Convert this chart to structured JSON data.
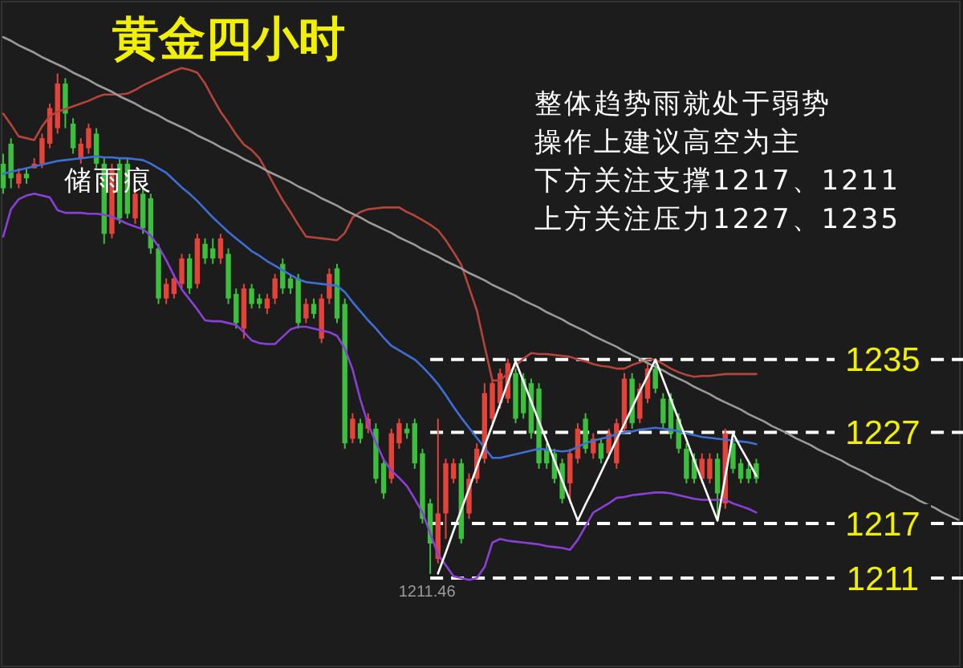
{
  "chart_data": {
    "type": "candlestick",
    "title": "黄金四小时",
    "categories": [
      null,
      null,
      null,
      null,
      null,
      null,
      null,
      null,
      null,
      null,
      null,
      null,
      null,
      null,
      null,
      null,
      null,
      null,
      null,
      null,
      null,
      null,
      null,
      null,
      null,
      null,
      null,
      null,
      null,
      null,
      null,
      null,
      null,
      null,
      null,
      null,
      null,
      null,
      null,
      null,
      null,
      null,
      null,
      null,
      null,
      null,
      null,
      null,
      null,
      null,
      null,
      null,
      null,
      null,
      null,
      null,
      null,
      null,
      null,
      null,
      null,
      null,
      null,
      null,
      null,
      null,
      null,
      null,
      null,
      null,
      null,
      null,
      null,
      null,
      null,
      null,
      null,
      null,
      null,
      null,
      null,
      null,
      null,
      null,
      null,
      null,
      null,
      null,
      null,
      null,
      null,
      null,
      null,
      null,
      null,
      null,
      null,
      null,
      null,
      null,
      null,
      null,
      null,
      null,
      null,
      null,
      null,
      null,
      null,
      null,
      null,
      null,
      null,
      null,
      null,
      null,
      null,
      null,
      null,
      null,
      null,
      null,
      null,
      null
    ],
    "ohlc": [
      [
        1256.5,
        1257.6,
        1253.2,
        1253.8
      ],
      [
        1258.7,
        1259.3,
        1253.8,
        1254.9
      ],
      [
        1254.3,
        1256.0,
        1253.8,
        1255.4
      ],
      [
        1255.4,
        1256.0,
        1254.3,
        1254.9
      ],
      [
        1256.0,
        1257.1,
        1256.0,
        1256.5
      ],
      [
        1256.5,
        1259.8,
        1256.0,
        1259.3
      ],
      [
        1258.7,
        1263.1,
        1258.2,
        1262.6
      ],
      [
        1260.4,
        1266.4,
        1259.8,
        1265.3
      ],
      [
        1265.3,
        1265.9,
        1260.4,
        1262.0
      ],
      [
        1260.9,
        1261.5,
        1257.6,
        1258.2
      ],
      [
        1257.1,
        1259.3,
        1256.5,
        1258.7
      ],
      [
        1258.2,
        1260.9,
        1257.6,
        1260.4
      ],
      [
        1259.8,
        1260.4,
        1256.0,
        1256.5
      ],
      [
        1256.5,
        1257.1,
        1247.7,
        1248.8
      ],
      [
        1248.8,
        1256.5,
        1248.3,
        1256.0
      ],
      [
        1256.5,
        1257.1,
        1249.9,
        1250.5
      ],
      [
        1256.5,
        1257.1,
        1250.5,
        1251.0
      ],
      [
        1250.5,
        1253.8,
        1249.9,
        1253.2
      ],
      [
        1253.2,
        1253.8,
        1248.8,
        1249.4
      ],
      [
        1252.7,
        1253.2,
        1246.6,
        1247.2
      ],
      [
        1247.2,
        1247.7,
        1241.1,
        1241.7
      ],
      [
        1241.7,
        1243.9,
        1241.1,
        1243.3
      ],
      [
        1242.2,
        1244.4,
        1241.7,
        1243.9
      ],
      [
        1243.3,
        1246.6,
        1242.8,
        1246.1
      ],
      [
        1246.1,
        1246.6,
        1242.2,
        1242.8
      ],
      [
        1243.3,
        1248.8,
        1242.8,
        1248.3
      ],
      [
        1247.7,
        1248.3,
        1245.5,
        1246.1
      ],
      [
        1247.2,
        1248.3,
        1245.5,
        1246.1
      ],
      [
        1246.1,
        1248.8,
        1245.5,
        1248.3
      ],
      [
        1246.6,
        1247.2,
        1241.1,
        1241.7
      ],
      [
        1242.2,
        1242.8,
        1238.4,
        1239.0
      ],
      [
        1238.4,
        1243.3,
        1237.3,
        1242.8
      ],
      [
        1242.8,
        1243.3,
        1240.6,
        1241.1
      ],
      [
        1241.7,
        1242.2,
        1240.6,
        1241.1
      ],
      [
        1240.6,
        1242.2,
        1240.0,
        1241.7
      ],
      [
        1241.7,
        1244.4,
        1241.1,
        1243.9
      ],
      [
        1245.5,
        1246.1,
        1242.2,
        1242.8
      ],
      [
        1243.9,
        1244.4,
        1242.2,
        1242.8
      ],
      [
        1243.9,
        1244.4,
        1238.4,
        1239.0
      ],
      [
        1239.5,
        1241.7,
        1239.0,
        1241.1
      ],
      [
        1241.1,
        1241.7,
        1239.5,
        1240.0
      ],
      [
        1237.3,
        1242.2,
        1236.8,
        1241.7
      ],
      [
        1241.7,
        1245.0,
        1241.1,
        1244.4
      ],
      [
        1245.0,
        1245.5,
        1239.0,
        1239.5
      ],
      [
        1241.1,
        1241.7,
        1225.2,
        1225.8
      ],
      [
        1226.3,
        1229.1,
        1225.8,
        1228.5
      ],
      [
        1228.0,
        1228.5,
        1225.8,
        1226.3
      ],
      [
        1227.4,
        1229.1,
        1226.9,
        1228.5
      ],
      [
        1227.4,
        1228.0,
        1221.4,
        1221.9
      ],
      [
        1223.6,
        1224.1,
        1219.7,
        1220.3
      ],
      [
        1221.9,
        1227.4,
        1221.4,
        1226.9
      ],
      [
        1225.8,
        1228.5,
        1225.2,
        1228.0
      ],
      [
        1227.4,
        1228.0,
        1226.3,
        1226.9
      ],
      [
        1228.0,
        1228.5,
        1223.0,
        1223.6
      ],
      [
        1224.7,
        1225.2,
        1217.0,
        1217.5
      ],
      [
        1219.2,
        1219.7,
        1211.46,
        1214.8
      ],
      [
        1213.1,
        1228.5,
        1212.6,
        1218.1
      ],
      [
        1218.1,
        1224.1,
        1215.3,
        1223.6
      ],
      [
        1221.9,
        1224.1,
        1221.4,
        1223.6
      ],
      [
        1223.6,
        1224.1,
        1214.8,
        1215.3
      ],
      [
        1218.1,
        1222.5,
        1217.5,
        1221.9
      ],
      [
        1221.9,
        1225.8,
        1221.4,
        1225.2
      ],
      [
        1224.1,
        1232.4,
        1223.6,
        1231.3
      ],
      [
        1228.5,
        1232.9,
        1228.0,
        1232.4
      ],
      [
        1230.2,
        1234.0,
        1229.6,
        1233.5
      ],
      [
        1230.7,
        1235.1,
        1230.2,
        1234.6
      ],
      [
        1233.5,
        1234.0,
        1228.0,
        1228.5
      ],
      [
        1232.9,
        1233.5,
        1228.5,
        1229.1
      ],
      [
        1232.4,
        1232.9,
        1226.3,
        1226.9
      ],
      [
        1231.8,
        1232.4,
        1223.0,
        1223.6
      ],
      [
        1225.2,
        1225.8,
        1223.0,
        1223.6
      ],
      [
        1224.7,
        1225.2,
        1221.4,
        1221.9
      ],
      [
        1223.6,
        1224.1,
        1219.2,
        1219.7
      ],
      [
        1221.4,
        1225.2,
        1219.2,
        1224.7
      ],
      [
        1224.1,
        1228.0,
        1223.6,
        1227.4
      ],
      [
        1228.5,
        1229.1,
        1224.7,
        1225.2
      ],
      [
        1224.7,
        1226.9,
        1224.1,
        1226.3
      ],
      [
        1225.8,
        1226.3,
        1223.6,
        1224.1
      ],
      [
        1224.7,
        1227.4,
        1224.1,
        1226.9
      ],
      [
        1223.6,
        1228.5,
        1223.0,
        1228.0
      ],
      [
        1227.4,
        1233.5,
        1226.9,
        1232.9
      ],
      [
        1232.9,
        1233.5,
        1227.4,
        1228.0
      ],
      [
        1228.5,
        1232.4,
        1228.0,
        1231.8
      ],
      [
        1230.7,
        1234.6,
        1230.2,
        1234.0
      ],
      [
        1234.0,
        1234.6,
        1231.3,
        1231.8
      ],
      [
        1230.7,
        1231.3,
        1227.4,
        1228.0
      ],
      [
        1230.7,
        1231.3,
        1226.3,
        1226.9
      ],
      [
        1228.5,
        1229.1,
        1224.7,
        1225.2
      ],
      [
        1225.2,
        1225.8,
        1221.4,
        1221.9
      ],
      [
        1224.1,
        1224.7,
        1221.4,
        1221.9
      ],
      [
        1221.9,
        1224.7,
        1221.4,
        1224.1
      ],
      [
        1221.9,
        1224.7,
        1221.4,
        1224.1
      ],
      [
        1224.1,
        1224.7,
        1217.5,
        1220.3
      ],
      [
        1219.2,
        1227.4,
        1218.6,
        1226.9
      ],
      [
        1225.8,
        1226.3,
        1222.5,
        1223.0
      ],
      [
        1223.6,
        1224.1,
        1221.4,
        1221.9
      ],
      [
        1223.0,
        1223.6,
        1221.4,
        1221.9
      ],
      [
        1223.6,
        1224.1,
        1221.4,
        1221.9
      ],
      null,
      null,
      null,
      null,
      null,
      null,
      null,
      null,
      null,
      null,
      null,
      null,
      null,
      null,
      null,
      null,
      null,
      null,
      null,
      null,
      null,
      null,
      null,
      null,
      null,
      null
    ],
    "series": [
      {
        "type": "line",
        "color": "#b5443a",
        "values": [
          1262.0,
          1260.8,
          1259.5,
          1259.3,
          1259.1,
          1260.6,
          1261.7,
          1262.2,
          1262.5,
          1262.8,
          1263.1,
          1263.4,
          1263.8,
          1264.1,
          1264.1,
          1264.1,
          1264.2,
          1264.6,
          1265.1,
          1265.5,
          1265.9,
          1266.3,
          1266.7,
          1267.0,
          1266.8,
          1266.5,
          1265.3,
          1263.7,
          1262.2,
          1261.0,
          1259.7,
          1258.6,
          1258.0,
          1257.1,
          1255.6,
          1254.0,
          1252.5,
          1251.2,
          1249.8,
          1248.5,
          1248.4,
          1248.3,
          1248.2,
          1248.1,
          1248.9,
          1250.6,
          1251.2,
          1251.5,
          1251.6,
          1251.7,
          1251.7,
          1251.7,
          1251.2,
          1250.8,
          1250.3,
          1249.8,
          1249.2,
          1248.1,
          1246.8,
          1245.4,
          1242.9,
          1240.4,
          1236.5,
          1232.7,
          1232.7,
          1233.5,
          1234.3,
          1235.1,
          1235.7,
          1235.6,
          1235.6,
          1235.5,
          1235.4,
          1235.3,
          1235.0,
          1234.8,
          1234.5,
          1234.3,
          1234.2,
          1234.0,
          1234.0,
          1234.4,
          1234.7,
          1235.0,
          1235.0,
          1234.5,
          1234.0,
          1233.6,
          1233.3,
          1233.1,
          1233.2,
          1233.2,
          1233.3,
          1233.4,
          1233.4,
          1233.4,
          1233.4,
          1233.4,
          null,
          null,
          null,
          null,
          null,
          null,
          null,
          null,
          null,
          null,
          null,
          null,
          null,
          null,
          null,
          null,
          null,
          null,
          null,
          null,
          null,
          null,
          null,
          null,
          null,
          null
        ]
      },
      {
        "type": "line",
        "color": "#3d6fd6",
        "values": [
          1255.4,
          1255.6,
          1255.8,
          1256.0,
          1256.2,
          1256.4,
          1256.6,
          1256.8,
          1256.9,
          1257.0,
          1257.1,
          1257.2,
          1257.3,
          1257.2,
          1257.2,
          1257.1,
          1257.1,
          1257.0,
          1256.9,
          1256.5,
          1256.0,
          1255.5,
          1254.7,
          1253.9,
          1253.2,
          1252.4,
          1251.5,
          1250.6,
          1249.8,
          1249.0,
          1248.3,
          1247.6,
          1246.9,
          1246.4,
          1245.8,
          1245.3,
          1244.8,
          1244.3,
          1243.8,
          1243.5,
          1243.4,
          1243.3,
          1243.2,
          1243.1,
          1242.4,
          1241.3,
          1240.3,
          1239.3,
          1238.4,
          1237.4,
          1236.5,
          1236.0,
          1235.5,
          1235.0,
          1234.2,
          1233.3,
          1232.3,
          1231.1,
          1229.8,
          1228.6,
          1227.5,
          1226.4,
          1225.3,
          1224.2,
          1224.2,
          1224.4,
          1224.6,
          1224.8,
          1225.0,
          1225.2,
          1225.1,
          1225.0,
          1224.9,
          1225.0,
          1225.4,
          1225.8,
          1226.1,
          1226.3,
          1226.5,
          1226.8,
          1227.0,
          1227.1,
          1227.3,
          1227.4,
          1227.5,
          1227.4,
          1227.3,
          1227.1,
          1226.9,
          1226.7,
          1226.5,
          1226.4,
          1226.3,
          1226.2,
          1226.1,
          1226.0,
          1225.9,
          1225.7,
          null,
          null,
          null,
          null,
          null,
          null,
          null,
          null,
          null,
          null,
          null,
          null,
          null,
          null,
          null,
          null,
          null,
          null,
          null,
          null,
          null,
          null,
          null,
          null,
          null,
          null
        ]
      },
      {
        "type": "line",
        "color": "#8a3fd6",
        "values": [
          1248.5,
          1251.5,
          1252.6,
          1253.0,
          1253.2,
          1253.0,
          1252.8,
          1251.4,
          1251.1,
          1251.1,
          1251.1,
          1251.0,
          1251.0,
          1250.9,
          1250.7,
          1250.3,
          1249.9,
          1249.6,
          1249.3,
          1248.6,
          1247.4,
          1245.9,
          1244.2,
          1242.7,
          1241.6,
          1240.5,
          1239.3,
          1239.2,
          1239.2,
          1239.0,
          1238.8,
          1238.0,
          1237.1,
          1236.8,
          1236.7,
          1236.7,
          1237.5,
          1238.3,
          1238.6,
          1238.6,
          1238.4,
          1238.2,
          1238.0,
          1237.6,
          1236.2,
          1233.9,
          1230.6,
          1227.9,
          1225.9,
          1224.0,
          1222.8,
          1222.0,
          1221.1,
          1219.7,
          1218.2,
          1215.9,
          1213.6,
          1212.4,
          1211.2,
          1211.0,
          1210.8,
          1211.0,
          1212.2,
          1214.9,
          1215.3,
          1215.1,
          1215.0,
          1214.9,
          1214.8,
          1214.7,
          1214.5,
          1214.4,
          1214.3,
          1214.1,
          1215.2,
          1216.7,
          1218.2,
          1218.7,
          1219.2,
          1219.8,
          1219.9,
          1220.1,
          1220.2,
          1220.3,
          1220.4,
          1220.4,
          1220.3,
          1220.1,
          1219.9,
          1219.7,
          1219.6,
          1219.6,
          1219.6,
          1219.6,
          1219.2,
          1218.9,
          1218.6,
          1218.2,
          null,
          null,
          null,
          null,
          null,
          null,
          null,
          null,
          null,
          null,
          null,
          null,
          null,
          null,
          null,
          null,
          null,
          null,
          null,
          null,
          null,
          null,
          null,
          null,
          null,
          null
        ]
      },
      {
        "type": "line",
        "color": "#9a9a9a",
        "values": [
          1270.4,
          1270.0,
          1269.5,
          1269.1,
          1268.7,
          1268.2,
          1267.8,
          1267.4,
          1267.0,
          1266.5,
          1266.1,
          1265.7,
          1265.2,
          1264.8,
          1264.4,
          1263.9,
          1263.5,
          1263.1,
          1262.6,
          1262.2,
          1261.8,
          1261.3,
          1260.9,
          1260.5,
          1260.1,
          1259.6,
          1259.2,
          1258.8,
          1258.3,
          1257.9,
          1257.5,
          1257.0,
          1256.6,
          1256.2,
          1255.7,
          1255.3,
          1254.9,
          1254.5,
          1254.0,
          1253.6,
          1253.2,
          1252.7,
          1252.3,
          1251.9,
          1251.4,
          1251.0,
          1250.6,
          1250.1,
          1249.7,
          1249.3,
          1248.9,
          1248.4,
          1248.0,
          1247.6,
          1247.1,
          1246.7,
          1246.3,
          1245.8,
          1245.4,
          1245.0,
          1244.5,
          1244.1,
          1243.7,
          1243.2,
          1242.8,
          1242.4,
          1242.0,
          1241.5,
          1241.1,
          1240.7,
          1240.2,
          1239.8,
          1239.4,
          1238.9,
          1238.5,
          1238.1,
          1237.6,
          1237.2,
          1236.8,
          1236.4,
          1235.9,
          1235.5,
          1235.1,
          1234.6,
          1234.2,
          1233.8,
          1233.3,
          1232.9,
          1232.5,
          1232.0,
          1231.6,
          1231.2,
          1230.7,
          1230.3,
          1229.9,
          1229.5,
          1229.0,
          1228.6,
          1228.2,
          1227.7,
          1227.3,
          1226.9,
          1226.4,
          1226.0,
          1225.6,
          1225.1,
          1224.7,
          1224.3,
          1223.9,
          1223.4,
          1223.0,
          1222.6,
          1222.1,
          1221.7,
          1221.3,
          1220.8,
          1220.4,
          1220.0,
          1219.5,
          1219.1,
          1218.7,
          1218.2,
          1217.8,
          1217.4
        ]
      },
      {
        "type": "line",
        "color": "#ffffff",
        "values": [
          null,
          null,
          null,
          null,
          null,
          null,
          null,
          null,
          null,
          null,
          null,
          null,
          null,
          null,
          null,
          null,
          null,
          null,
          null,
          null,
          null,
          null,
          null,
          null,
          null,
          null,
          null,
          null,
          null,
          null,
          null,
          null,
          null,
          null,
          null,
          null,
          null,
          null,
          null,
          null,
          null,
          null,
          null,
          null,
          null,
          null,
          null,
          null,
          null,
          null,
          null,
          null,
          null,
          null,
          null,
          null,
          1211.5,
          1213.8,
          1216.2,
          1218.5,
          1220.8,
          1223.2,
          1225.5,
          1227.8,
          1230.1,
          1232.5,
          1234.8,
          1232.6,
          1230.4,
          1228.2,
          1226.1,
          1223.9,
          1221.7,
          1219.5,
          1217.3,
          1219.1,
          1220.8,
          1222.6,
          1224.4,
          1226.2,
          1227.9,
          1229.7,
          1231.5,
          1233.2,
          1235.0,
          1232.8,
          1230.6,
          1228.4,
          1226.2,
          1223.9,
          1221.7,
          1219.5,
          1217.3,
          1222.1,
          1226.9,
          1225.3,
          1223.8,
          1222.2,
          null,
          null,
          null,
          null,
          null,
          null,
          null,
          null,
          null,
          null,
          null,
          null,
          null,
          null,
          null,
          null,
          null,
          null,
          null,
          null,
          null,
          null,
          null,
          null,
          null,
          null
        ]
      }
    ],
    "ylim": [
      1201.3,
      1274.3
    ],
    "yticks": [
      1211,
      1217,
      1227,
      1235
    ],
    "tick_labels": "y",
    "ref_lines": [
      {
        "axis": "y",
        "value": 1235,
        "color": "#ffffff",
        "line_style": "dashed"
      },
      {
        "axis": "y",
        "value": 1227,
        "color": "#ffffff",
        "line_style": "dashed"
      },
      {
        "axis": "y",
        "value": 1217,
        "color": "#ffffff",
        "line_style": "dashed"
      },
      {
        "axis": "y",
        "value": 1211,
        "color": "#ffffff",
        "line_style": "dashed"
      }
    ],
    "annotations": [
      "整体趋势雨就处于弱势",
      "操作上建议高空为主",
      "下方关注支撑1217、1211",
      "上方关注压力1227、1235",
      "储雨痕",
      {
        "text": "1211.46",
        "y": 1211.46
      }
    ]
  }
}
